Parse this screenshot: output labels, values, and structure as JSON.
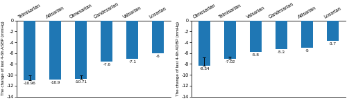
{
  "chart_data": [
    {
      "type": "bar",
      "categories": [
        "Telmisartan",
        "Allisartan",
        "Olmesartan",
        "Candesartan",
        "Valsartan",
        "Losartan"
      ],
      "values": [
        -10.96,
        -10.9,
        -10.71,
        -7.6,
        -7.1,
        -6
      ],
      "yerr": [
        0.8,
        0,
        0.6,
        0,
        0,
        0
      ],
      "y_label": "The change of last 4-6h ASBP (mmHg)",
      "ylim": [
        -14,
        0
      ],
      "yticks": [
        0,
        -2,
        -4,
        -6,
        -8,
        -10,
        -12,
        -14
      ],
      "data_labels": true
    },
    {
      "type": "bar",
      "categories": [
        "Olmesartan",
        "Telmisartan",
        "Valsartan",
        "Candesartan",
        "Allisartan",
        "Losartan"
      ],
      "values": [
        -8.34,
        -7.02,
        -5.8,
        -5.3,
        -5,
        -3.7
      ],
      "yerr": [
        1.5,
        0.4,
        0,
        0,
        0,
        0
      ],
      "y_label": "The change of last 4-6h ADBP (mmHg)",
      "ylim": [
        -14,
        0
      ],
      "yticks": [
        0,
        -2,
        -4,
        -6,
        -8,
        -10,
        -12,
        -14
      ],
      "data_labels": true
    }
  ]
}
